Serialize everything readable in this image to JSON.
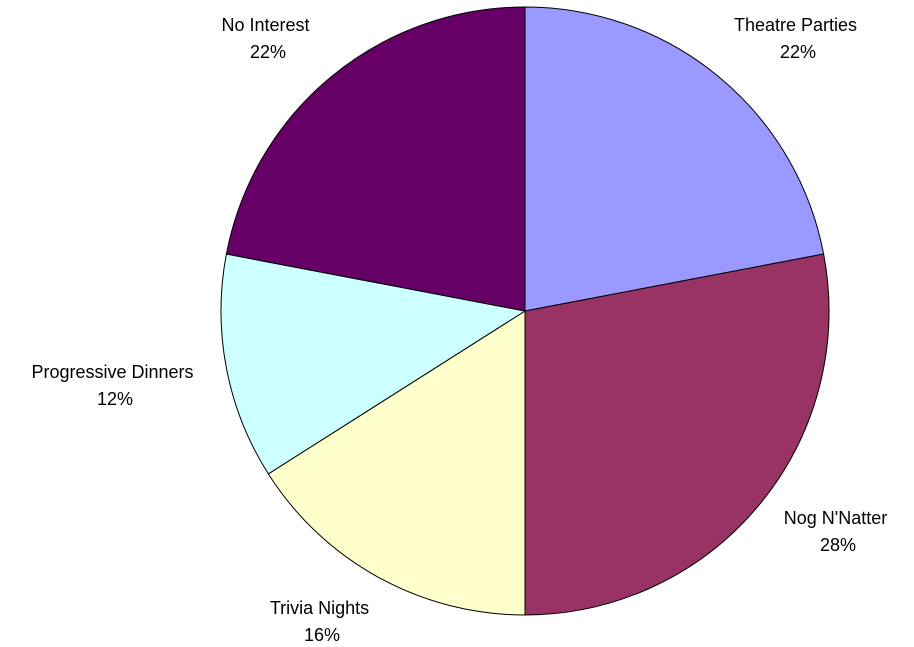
{
  "chart_data": {
    "type": "pie",
    "categories": [
      "Theatre Parties",
      "Nog N'Natter",
      "Trivia Nights",
      "Progressive Dinners",
      "No Interest"
    ],
    "values": [
      22,
      28,
      16,
      12,
      22
    ],
    "labels": [
      {
        "name": "Theatre Parties",
        "pct": "22%"
      },
      {
        "name": "Nog N'Natter",
        "pct": "28%"
      },
      {
        "name": "Trivia Nights",
        "pct": "16%"
      },
      {
        "name": "Progressive Dinners",
        "pct": "12%"
      },
      {
        "name": "No Interest",
        "pct": "22%"
      }
    ],
    "colors": [
      "#9999ff",
      "#993366",
      "#ffffcc",
      "#ccffff",
      "#660066"
    ],
    "start_position": "top",
    "direction": "clockwise",
    "legend": "none"
  }
}
